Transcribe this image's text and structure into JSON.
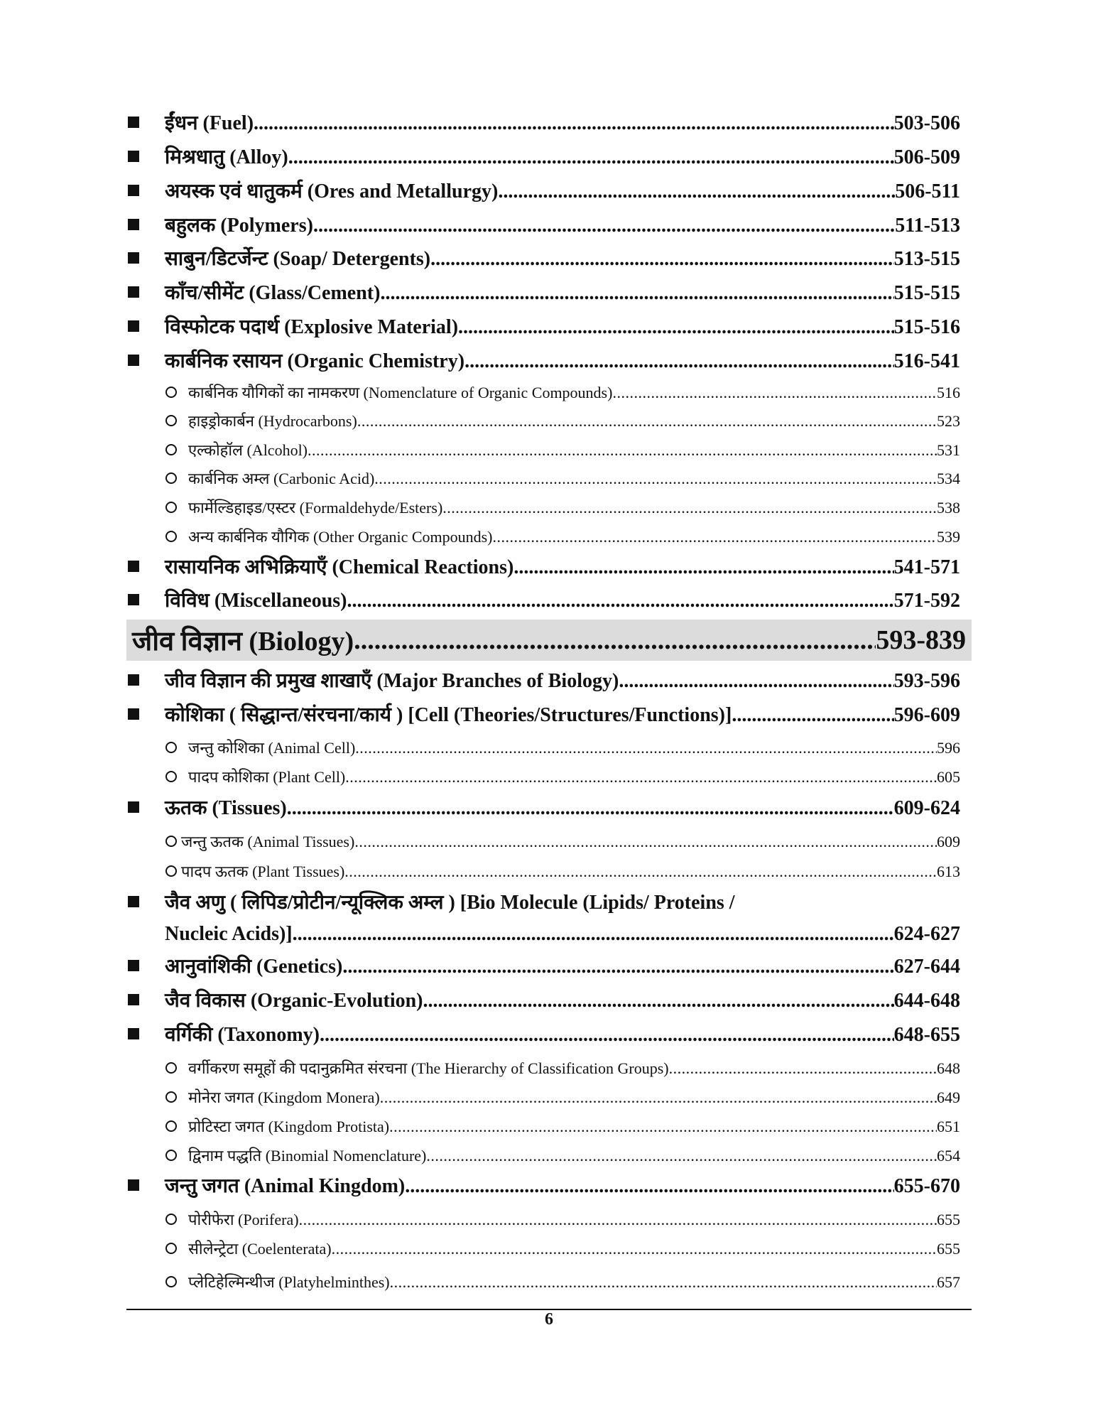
{
  "entries": [
    {
      "type": "main",
      "label": "ईंधन (Fuel)",
      "page": "503-506"
    },
    {
      "type": "main",
      "label": "मिश्रधातु (Alloy) ",
      "page": "506-509"
    },
    {
      "type": "main",
      "label": "अयस्क एवं धातुकर्म (Ores and Metallurgy)",
      "page": "506-511"
    },
    {
      "type": "main",
      "label": "बहुलक (Polymers) ",
      "page": "511-513"
    },
    {
      "type": "main",
      "label": "साबुन/डिटर्जेन्ट (Soap/ Detergents)",
      "page": "513-515"
    },
    {
      "type": "main",
      "label": "काँच/सीमेंट (Glass/Cement)",
      "page": "515-515"
    },
    {
      "type": "main",
      "label": "विस्फोटक पदार्थ (Explosive Material) ",
      "page": "515-516"
    },
    {
      "type": "main",
      "label": "कार्बनिक रसायन (Organic Chemistry)",
      "page": "516-541"
    },
    {
      "type": "sub",
      "label": "कार्बनिक यौगिकों का नामकरण (Nomenclature of  Organic Compounds)",
      "page": "516"
    },
    {
      "type": "sub",
      "label": "हाइड्रोकार्बन (Hydrocarbons) ",
      "page": "523"
    },
    {
      "type": "sub",
      "label": "एल्कोहॉल (Alcohol)",
      "page": "531"
    },
    {
      "type": "sub",
      "label": "कार्बनिक अम्ल (Carbonic Acid)",
      "page": "534"
    },
    {
      "type": "sub",
      "label": "फार्मेल्डिहाइड/एस्टर (Formaldehyde/Esters)",
      "page": "538"
    },
    {
      "type": "sub",
      "label": "अन्य कार्बनिक यौगिक (Other Organic Compounds)",
      "page": "539"
    },
    {
      "type": "main",
      "label": "रासायनिक अभिक्रियाएँ (Chemical Reactions) ",
      "page": "541-571"
    },
    {
      "type": "main",
      "label": "विविध (Miscellaneous)",
      "page": "571-592"
    },
    {
      "type": "band",
      "label": "जीव विज्ञान  (Biology)",
      "page": " 593-839"
    },
    {
      "type": "main",
      "label": "जीव विज्ञान की प्रमुख शाखाएँ (Major Branches of Biology) ",
      "page": "593-596"
    },
    {
      "type": "main",
      "label": "कोशिका ( सिद्धान्त/संरचना/कार्य ) [Cell (Theories/Structures/Functions)]",
      "page": "596-609"
    },
    {
      "type": "sub",
      "label": "जन्तु कोशिका (Animal Cell) ",
      "page": "596"
    },
    {
      "type": "sub",
      "label": "पादप कोशिका (Plant Cell)",
      "page": "605"
    },
    {
      "type": "main",
      "label": "ऊतक (Tissues)",
      "page": "609-624"
    },
    {
      "type": "subtight",
      "label": "जन्तु ऊतक (Animal Tissues)",
      "page": "609"
    },
    {
      "type": "subtight",
      "label": "पादप ऊतक (Plant Tissues) ",
      "page": "613"
    },
    {
      "type": "mainopen",
      "label": "जैव अणु ( लिपिड/प्रोटीन/न्यूक्लिक  अम्ल ) [Bio Molecule (Lipids/ Proteins /"
    },
    {
      "type": "cont",
      "label": "Nucleic Acids)] ",
      "page": "624-627"
    },
    {
      "type": "main",
      "label": "आनुवांशिकी (Genetics)",
      "page": "627-644"
    },
    {
      "type": "main",
      "label": "जैव विकास (Organic-Evolution)",
      "page": "644-648"
    },
    {
      "type": "main",
      "label": "वर्गिकी (Taxonomy) ",
      "page": "648-655"
    },
    {
      "type": "sub",
      "label": "वर्गीकरण समूहों की पदानुक्रमित संरचना (The Hierarchy of Classification Groups)  ",
      "page": "648"
    },
    {
      "type": "sub",
      "label": "मोनेरा जगत (Kingdom Monera)",
      "page": "649"
    },
    {
      "type": "sub",
      "label": "प्रोटिस्टा जगत (Kingdom Protista)",
      "page": "651"
    },
    {
      "type": "sub",
      "label": "द्विनाम पद्धति (Binomial Nomenclature) ",
      "page": "654"
    },
    {
      "type": "main",
      "label": "जन्तु जगत (Animal Kingdom)",
      "page": "655-670"
    },
    {
      "type": "sub",
      "label": "पोरीफेरा (Porifera) ",
      "page": "655"
    },
    {
      "type": "sub",
      "label": "सीलेन्ट्रेटा (Coelenterata)",
      "page": "655"
    },
    {
      "type": "sub",
      "label": "प्लेटिहेल्मिन्थीज (Platyhelminthes)",
      "page": "657"
    }
  ],
  "footer": {
    "page_number": "6"
  }
}
